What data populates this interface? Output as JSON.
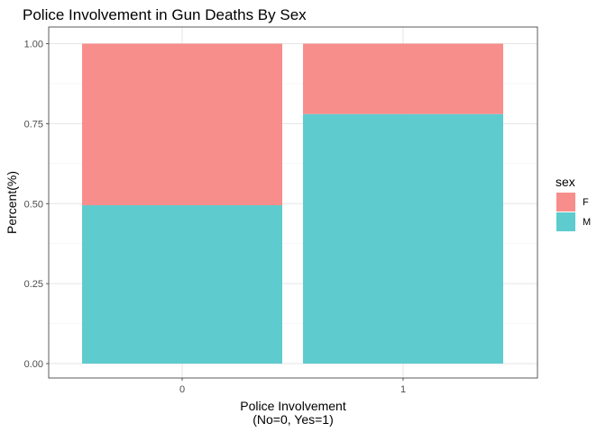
{
  "chart_data": {
    "type": "bar",
    "stacked": true,
    "title": "Police Involvement in Gun Deaths By Sex",
    "xlabel_lines": [
      "Police Involvement",
      "(No=0, Yes=1)"
    ],
    "ylabel": "Percent(%)",
    "categories": [
      "0",
      "1"
    ],
    "y_ticks": [
      "0.00",
      "0.25",
      "0.50",
      "0.75",
      "1.00"
    ],
    "ylim": [
      0,
      1
    ],
    "grid": true,
    "legend": {
      "title": "sex",
      "position": "right"
    },
    "series": [
      {
        "name": "M",
        "color": "#5ecbcf",
        "values": [
          0.495,
          0.78
        ]
      },
      {
        "name": "F",
        "color": "#f88e8b",
        "values": [
          0.505,
          0.22
        ]
      }
    ]
  }
}
